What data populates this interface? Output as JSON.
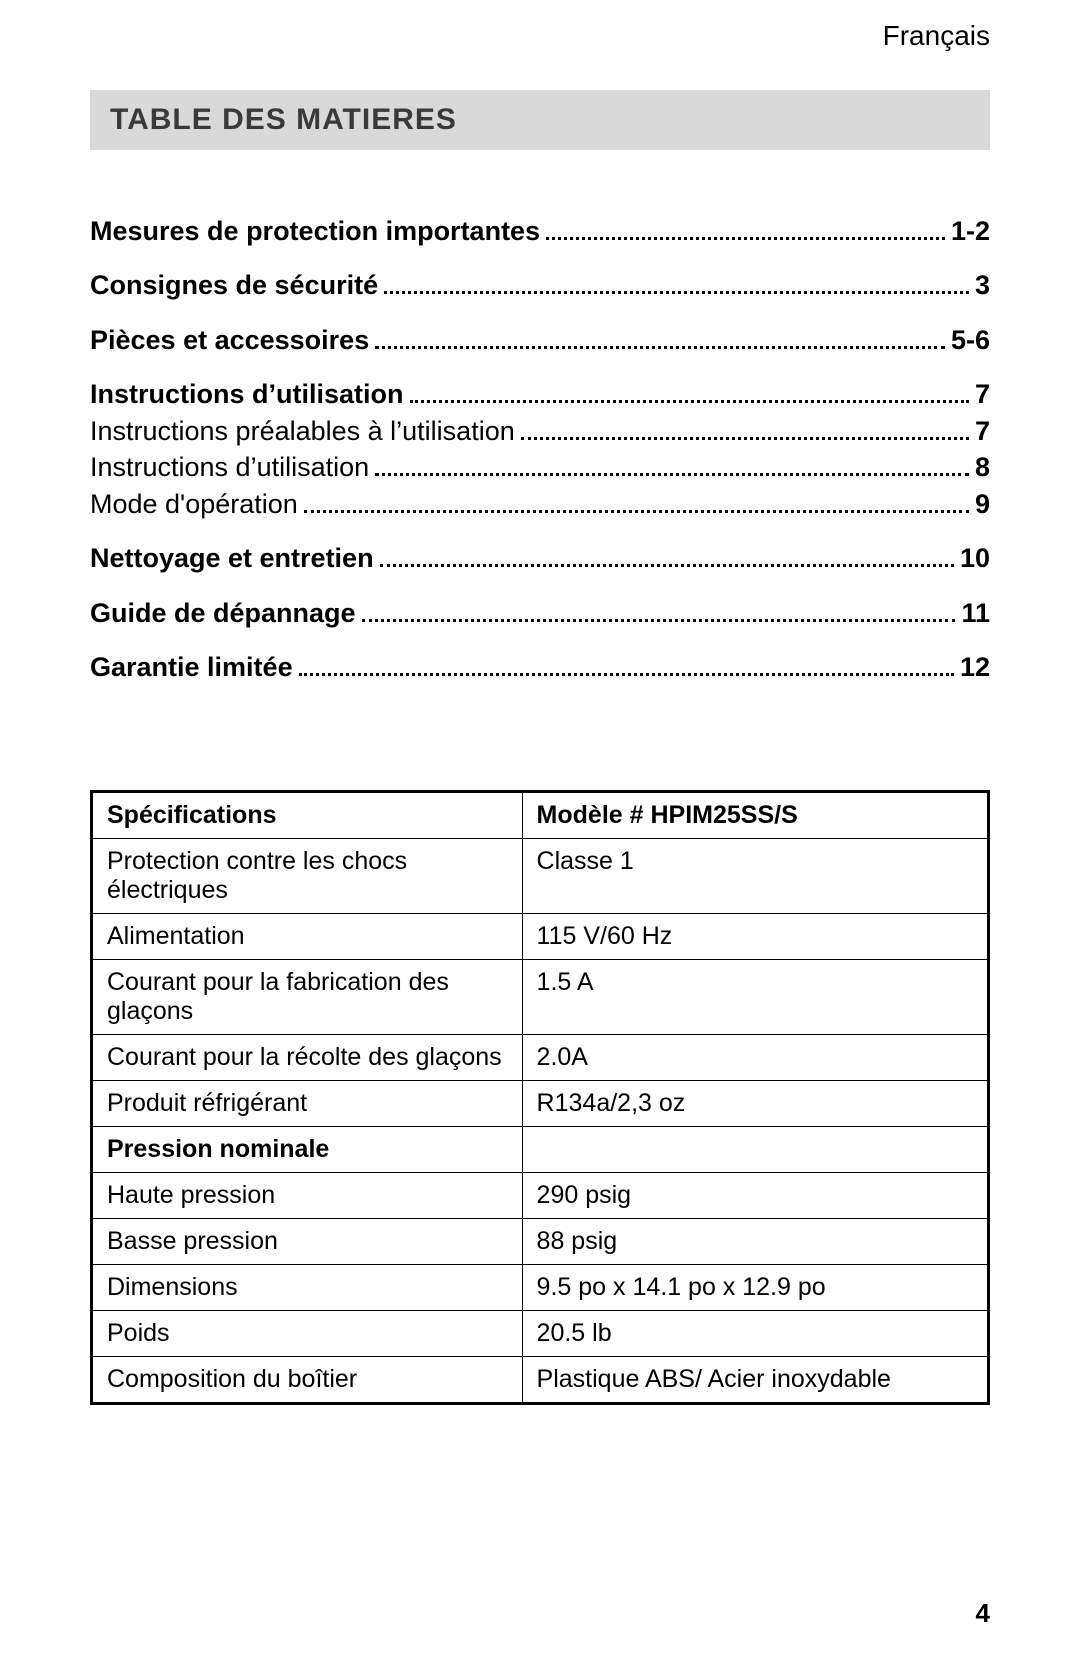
{
  "language_label": "Français",
  "title": "TABLE DES MATIERES",
  "toc": [
    {
      "label": "Mesures de protection importantes",
      "page": "1-2",
      "level": "main"
    },
    {
      "label": "Consignes de sécurité",
      "page": "3",
      "level": "main"
    },
    {
      "label": "Pièces et accessoires",
      "page": "5-6",
      "level": "main"
    },
    {
      "label": "Instructions d’utilisation",
      "page": "7",
      "level": "main"
    },
    {
      "label": "Instructions préalables à l’utilisation",
      "page": "7",
      "level": "sub"
    },
    {
      "label": "Instructions d’utilisation",
      "page": "8",
      "level": "sub"
    },
    {
      "label": "Mode d'opération",
      "page": "9",
      "level": "sub"
    },
    {
      "label": "Nettoyage et entretien",
      "page": "10",
      "level": "main"
    },
    {
      "label": "Guide de dépannage",
      "page": "11",
      "level": "main"
    },
    {
      "label": "Garantie limitée",
      "page": "12",
      "level": "main"
    }
  ],
  "spec_table": {
    "rows": [
      {
        "k": "Spécifications",
        "v": "Modèle # HPIM25SS/S",
        "header": true
      },
      {
        "k": "Protection contre les chocs électriques",
        "v": "Classe 1",
        "header": false
      },
      {
        "k": "Alimentation",
        "v": "115 V/60 Hz",
        "header": false
      },
      {
        "k": "Courant pour la fabrication des glaçons",
        "v": "1.5 A",
        "header": false
      },
      {
        "k": "Courant pour la récolte des glaçons",
        "v": "2.0A",
        "header": false
      },
      {
        "k": "Produit réfrigérant",
        "v": "R134a/2,3 oz",
        "header": false
      },
      {
        "k": "Pression nominale",
        "v": "",
        "header": true
      },
      {
        "k": "Haute pression",
        "v": "290 psig",
        "header": false
      },
      {
        "k": "Basse pression",
        "v": "88 psig",
        "header": false
      },
      {
        "k": "Dimensions",
        "v": "9.5 po x 14.1 po x 12.9 po",
        "header": false
      },
      {
        "k": "Poids",
        "v": "20.5 lb",
        "header": false
      },
      {
        "k": "Composition du boîtier",
        "v": "Plastique ABS/ Acier inoxydable",
        "header": false
      }
    ]
  },
  "page_number": "4",
  "colors": {
    "title_bar_bg": "#d9d9d9",
    "title_text": "#3a3a3a",
    "text": "#000000",
    "background": "#ffffff"
  }
}
